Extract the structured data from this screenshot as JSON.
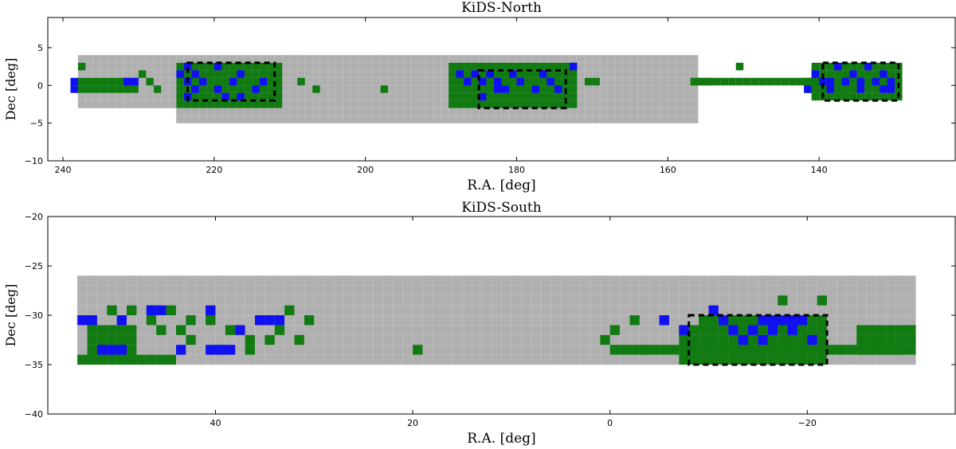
{
  "colors": {
    "footprint": "#b0b0b0",
    "observed": "#117a11",
    "overlap": "#1010f0",
    "box": "#000000"
  },
  "chart_data": [
    {
      "type": "scatter",
      "title": "KiDS-North",
      "xlabel": "R.A. [deg]",
      "ylabel": "Dec [deg]",
      "xlim": [
        242,
        122
      ],
      "ylim": [
        -10,
        9
      ],
      "xticks": [
        240,
        220,
        200,
        180,
        160,
        140
      ],
      "yticks": [
        5,
        0,
        -5,
        -10
      ],
      "xtick_labels": [
        "240",
        "220",
        "200",
        "180",
        "160",
        "140"
      ],
      "ytick_labels": [
        "5",
        "0",
        "−5",
        "−10"
      ],
      "tile_size": 1,
      "footprint_regions": [
        {
          "ra": [
            156,
            238
          ],
          "dec": [
            -3,
            4
          ]
        },
        {
          "ra": [
            156,
            225
          ],
          "dec": [
            -5,
            -3
          ]
        }
      ],
      "observed_regions": [
        {
          "ra": [
            211,
            225
          ],
          "dec": [
            -3,
            3
          ]
        },
        {
          "ra": [
            172,
            189
          ],
          "dec": [
            -3,
            3
          ]
        },
        {
          "ra": [
            129,
            141
          ],
          "dec": [
            -2,
            3
          ]
        },
        {
          "ra": [
            230,
            238
          ],
          "dec": [
            -1,
            1
          ]
        },
        {
          "ra": [
            136,
            142
          ],
          "dec": [
            -1,
            1
          ]
        },
        {
          "ra": [
            129,
            157
          ],
          "dec": [
            0,
            1
          ]
        }
      ],
      "observed_tiles": [
        [
          237,
          2
        ],
        [
          229,
          1
        ],
        [
          228,
          0
        ],
        [
          227,
          -1
        ],
        [
          208,
          0
        ],
        [
          206,
          -1
        ],
        [
          197,
          -1
        ],
        [
          170,
          0
        ],
        [
          169,
          0
        ],
        [
          150,
          2
        ],
        [
          154,
          0
        ],
        [
          155,
          0
        ],
        [
          156,
          0
        ]
      ],
      "overlap_tiles": [
        [
          238,
          0
        ],
        [
          238,
          -1
        ],
        [
          231,
          0
        ],
        [
          230,
          0
        ],
        [
          224,
          1
        ],
        [
          223,
          2
        ],
        [
          223,
          0
        ],
        [
          222,
          1
        ],
        [
          222,
          -1
        ],
        [
          221,
          0
        ],
        [
          219,
          2
        ],
        [
          219,
          -1
        ],
        [
          217,
          0
        ],
        [
          216,
          1
        ],
        [
          214,
          -1
        ],
        [
          213,
          0
        ],
        [
          223,
          -2
        ],
        [
          218,
          -2
        ],
        [
          216,
          -2
        ],
        [
          187,
          1
        ],
        [
          186,
          0
        ],
        [
          185,
          1
        ],
        [
          184,
          0
        ],
        [
          183,
          1
        ],
        [
          182,
          0
        ],
        [
          181,
          -1
        ],
        [
          180,
          1
        ],
        [
          179,
          0
        ],
        [
          177,
          -1
        ],
        [
          176,
          1
        ],
        [
          175,
          0
        ],
        [
          174,
          -1
        ],
        [
          172,
          2
        ],
        [
          182,
          -1
        ],
        [
          184,
          -2
        ],
        [
          140,
          1
        ],
        [
          139,
          0
        ],
        [
          138,
          -1
        ],
        [
          137,
          2
        ],
        [
          136,
          0
        ],
        [
          135,
          1
        ],
        [
          134,
          -1
        ],
        [
          133,
          2
        ],
        [
          132,
          0
        ],
        [
          131,
          1
        ],
        [
          130,
          -1
        ],
        [
          130,
          0
        ],
        [
          131,
          -1
        ],
        [
          134,
          0
        ],
        [
          138,
          0
        ],
        [
          141,
          -1
        ]
      ],
      "dashed_boxes": [
        {
          "ra": [
            212,
            223.5
          ],
          "dec": [
            -2,
            3
          ]
        },
        {
          "ra": [
            173.5,
            185
          ],
          "dec": [
            -3,
            2
          ]
        },
        {
          "ra": [
            129.5,
            139.5
          ],
          "dec": [
            -2,
            3
          ]
        }
      ]
    },
    {
      "type": "scatter",
      "title": "KiDS-South",
      "xlabel": "R.A. [deg]",
      "ylabel": "Dec [deg]",
      "xlim": [
        57,
        -35
      ],
      "ylim": [
        -40,
        -20
      ],
      "xticks": [
        40,
        20,
        0,
        -20
      ],
      "yticks": [
        -20,
        -25,
        -30,
        -35,
        -40
      ],
      "xtick_labels": [
        "40",
        "20",
        "0",
        "−20"
      ],
      "ytick_labels": [
        "−20",
        "−25",
        "−30",
        "−35",
        "−40"
      ],
      "tile_size": 1,
      "footprint_regions": [
        {
          "ra": [
            -31,
            54
          ],
          "dec": [
            -35,
            -26
          ]
        }
      ],
      "observed_regions": [
        {
          "ra": [
            -22,
            -7
          ],
          "dec": [
            -35,
            -31
          ]
        },
        {
          "ra": [
            -22,
            -9
          ],
          "dec": [
            -31,
            -30
          ]
        },
        {
          "ra": [
            -31,
            -25
          ],
          "dec": [
            -34,
            -31
          ]
        },
        {
          "ra": [
            -30,
            0
          ],
          "dec": [
            -34,
            -33
          ]
        },
        {
          "ra": [
            44,
            54
          ],
          "dec": [
            -35,
            -34
          ]
        },
        {
          "ra": [
            48,
            53
          ],
          "dec": [
            -34,
            -31
          ]
        }
      ],
      "observed_tiles": [
        [
          -18,
          -29
        ],
        [
          -22,
          -29
        ],
        [
          -6,
          -31
        ],
        [
          -3,
          -31
        ],
        [
          -1,
          -32
        ],
        [
          0,
          -33
        ],
        [
          50,
          -30
        ],
        [
          48,
          -30
        ],
        [
          46,
          -30
        ],
        [
          44,
          -30
        ],
        [
          42,
          -31
        ],
        [
          40,
          -31
        ],
        [
          38,
          -32
        ],
        [
          36,
          -33
        ],
        [
          35,
          -31
        ],
        [
          33,
          -32
        ],
        [
          32,
          -30
        ],
        [
          30,
          -31
        ],
        [
          45,
          -32
        ],
        [
          42,
          -33
        ],
        [
          39,
          -34
        ],
        [
          36,
          -34
        ],
        [
          34,
          -33
        ],
        [
          31,
          -33
        ],
        [
          19,
          -34
        ],
        [
          -4,
          -34
        ],
        [
          46,
          -31
        ],
        [
          43,
          -32
        ]
      ],
      "overlap_tiles": [
        [
          53,
          -31
        ],
        [
          52,
          -31
        ],
        [
          49,
          -31
        ],
        [
          46,
          -30
        ],
        [
          45,
          -30
        ],
        [
          40,
          -30
        ],
        [
          37,
          -32
        ],
        [
          35,
          -31
        ],
        [
          34,
          -31
        ],
        [
          33,
          -31
        ],
        [
          51,
          -34
        ],
        [
          50,
          -34
        ],
        [
          49,
          -34
        ],
        [
          43,
          -34
        ],
        [
          40,
          -34
        ],
        [
          39,
          -34
        ],
        [
          38,
          -34
        ],
        [
          -6,
          -31
        ],
        [
          -8,
          -32
        ],
        [
          -12,
          -31
        ],
        [
          -16,
          -31
        ],
        [
          -17,
          -31
        ],
        [
          -18,
          -31
        ],
        [
          -19,
          -31
        ],
        [
          -20,
          -31
        ],
        [
          -17,
          -32
        ],
        [
          -19,
          -32
        ],
        [
          -14,
          -33
        ],
        [
          -16,
          -33
        ],
        [
          -21,
          -33
        ],
        [
          -13,
          -32
        ],
        [
          -11,
          -30
        ],
        [
          -15,
          -32
        ]
      ],
      "dashed_boxes": [
        {
          "ra": [
            -22,
            -8
          ],
          "dec": [
            -35,
            -30
          ]
        }
      ]
    }
  ]
}
